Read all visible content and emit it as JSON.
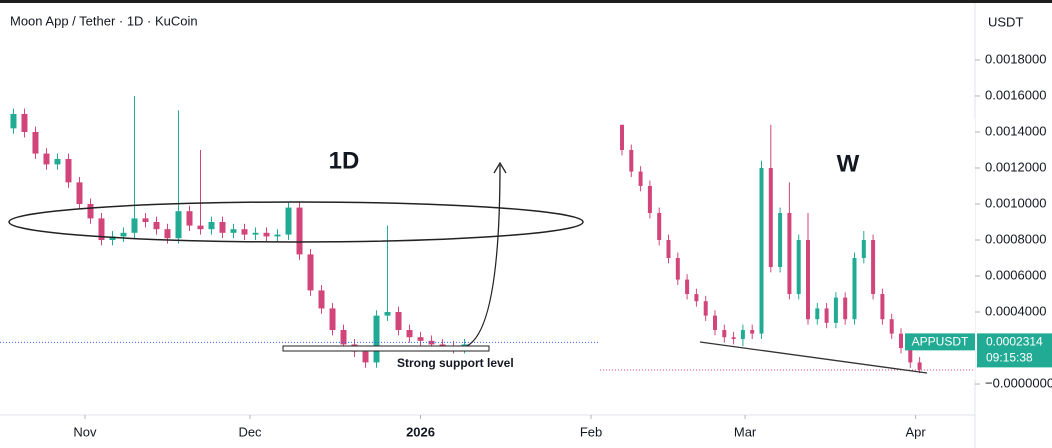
{
  "chart_data": [
    {
      "type": "candlestick",
      "title": "Moon App / Tether · 1D · KuCoin",
      "currency": "USDT",
      "annotation_main": "1D",
      "support_note": "Strong support level",
      "up_color": "#22ab94",
      "down_color": "#d1457a",
      "x": [
        -13,
        -11,
        -9,
        -7,
        -5,
        -3,
        -1,
        1,
        3,
        5,
        7,
        9,
        11,
        13,
        15,
        17,
        19,
        21,
        23,
        25,
        27,
        29,
        31,
        33,
        35,
        37,
        39,
        41,
        43,
        45,
        47,
        49,
        51,
        53,
        55,
        57,
        59,
        61,
        63,
        65,
        67,
        69
      ],
      "open": [
        0.00142,
        0.0015,
        0.0014,
        0.00128,
        0.00122,
        0.00125,
        0.00112,
        0.001,
        0.00092,
        0.0008,
        0.00082,
        0.00084,
        0.00092,
        0.0009,
        0.00086,
        0.00081,
        0.00096,
        0.00088,
        0.00086,
        0.0009,
        0.00084,
        0.00086,
        0.00083,
        0.00084,
        0.00082,
        0.00083,
        0.00098,
        0.00072,
        0.00052,
        0.00042,
        0.0003,
        0.00022,
        0.00018,
        0.00012,
        0.00038,
        0.0004,
        0.0003,
        0.00026,
        0.00024,
        0.00022,
        0.00021,
        0.0002
      ],
      "high": [
        0.00153,
        0.00153,
        0.00143,
        0.00131,
        0.00128,
        0.00128,
        0.00115,
        0.00103,
        0.00095,
        0.00085,
        0.00087,
        0.0016,
        0.00095,
        0.00093,
        0.00089,
        0.00152,
        0.00099,
        0.0013,
        0.00093,
        0.00093,
        0.00089,
        0.00089,
        0.00087,
        0.00087,
        0.00086,
        0.00101,
        0.00101,
        0.00075,
        0.00055,
        0.00045,
        0.00033,
        0.00025,
        0.00021,
        0.00041,
        0.00088,
        0.00043,
        0.00033,
        0.00029,
        0.00027,
        0.00025,
        0.00024,
        0.00025
      ],
      "low": [
        0.00139,
        0.00137,
        0.00125,
        0.00119,
        0.00119,
        0.00109,
        0.00097,
        0.00089,
        0.00077,
        0.00077,
        0.00079,
        0.00081,
        0.00087,
        0.00083,
        0.00078,
        0.00078,
        0.00085,
        0.00083,
        0.00083,
        0.00081,
        0.00081,
        0.0008,
        0.0008,
        0.00079,
        0.00079,
        0.0008,
        0.00069,
        0.00049,
        0.00039,
        0.00027,
        0.00019,
        0.00015,
        9e-05,
        9e-05,
        0.00035,
        0.00027,
        0.00023,
        0.00021,
        0.00019,
        0.00018,
        0.00017,
        0.00017
      ],
      "close": [
        0.0015,
        0.0014,
        0.00128,
        0.00122,
        0.00125,
        0.00112,
        0.001,
        0.00092,
        0.0008,
        0.00082,
        0.00084,
        0.00092,
        0.0009,
        0.00086,
        0.00081,
        0.00096,
        0.00088,
        0.00086,
        0.0009,
        0.00084,
        0.00086,
        0.00083,
        0.00084,
        0.00082,
        0.00083,
        0.00098,
        0.00072,
        0.00052,
        0.00042,
        0.0003,
        0.00022,
        0.00018,
        0.00012,
        0.00038,
        0.0004,
        0.0003,
        0.00026,
        0.00024,
        0.00022,
        0.00021,
        0.0002,
        0.00022
      ],
      "xlim": [
        -15.45,
        161.8
      ],
      "xticks": [
        {
          "value": 0,
          "label": "Nov"
        },
        {
          "value": 30,
          "label": "Dec"
        },
        {
          "value": 61,
          "label": "2026"
        },
        {
          "value": 92,
          "label": "Feb"
        },
        {
          "value": 120,
          "label": "Mar"
        },
        {
          "value": 151,
          "label": "Apr"
        }
      ],
      "ylim": [
        -0.000172,
        0.002133
      ],
      "yticks": [
        {
          "value": 0.0018,
          "label": "0.0018000"
        },
        {
          "value": 0.0016,
          "label": "0.0016000"
        },
        {
          "value": 0.0014,
          "label": "0.0014000"
        },
        {
          "value": 0.0012,
          "label": "0.0012000"
        },
        {
          "value": 0.001,
          "label": "0.0010000"
        },
        {
          "value": 0.0008,
          "label": "0.0008000"
        },
        {
          "value": 0.0006,
          "label": "0.0006000"
        },
        {
          "value": 0.0004,
          "label": "0.0004000"
        },
        {
          "value": 0,
          "label": "−0.0000000"
        }
      ],
      "last_price": {
        "symbol": "APPUSDT",
        "price": {
          "value": 0.0002314,
          "label": "0.0002314"
        },
        "countdown": "09:15:38"
      }
    },
    {
      "type": "candlestick",
      "annotation_main": "W",
      "up_color": "#22ab94",
      "down_color": "#d1457a",
      "open": [
        0.00144,
        0.0013,
        0.00118,
        0.0011,
        0.00095,
        0.0008,
        0.0007,
        0.00058,
        0.0005,
        0.00046,
        0.00038,
        0.0003,
        0.00026,
        0.00025,
        0.0003,
        0.00028,
        0.0012,
        0.00065,
        0.00095,
        0.0005,
        0.0008,
        0.00036,
        0.00042,
        0.00034,
        0.00048,
        0.00036,
        0.0007,
        0.0008,
        0.0005,
        0.00036,
        0.00028,
        0.0002,
        0.00012
      ],
      "high": [
        0.00144,
        0.00133,
        0.00121,
        0.00113,
        0.00098,
        0.00083,
        0.00073,
        0.00061,
        0.00053,
        0.00049,
        0.00041,
        0.00033,
        0.00029,
        0.00033,
        0.00033,
        0.00124,
        0.00144,
        0.00098,
        0.00112,
        0.00083,
        0.00095,
        0.00045,
        0.00045,
        0.00051,
        0.00051,
        0.00073,
        0.00085,
        0.00083,
        0.00053,
        0.00039,
        0.00031,
        0.00023,
        0.00015
      ],
      "low": [
        0.00127,
        0.00115,
        0.00107,
        0.00092,
        0.00077,
        0.00067,
        0.00055,
        0.00047,
        0.00043,
        0.00035,
        0.00027,
        0.00023,
        0.00022,
        0.00021,
        0.00025,
        0.00025,
        0.00062,
        0.00062,
        0.00047,
        0.00047,
        0.00033,
        0.00033,
        0.00031,
        0.00031,
        0.00033,
        0.00033,
        0.00067,
        0.00047,
        0.00033,
        0.00025,
        0.00017,
        9e-05,
        6e-05
      ],
      "close": [
        0.0013,
        0.00118,
        0.0011,
        0.00095,
        0.0008,
        0.0007,
        0.00058,
        0.0005,
        0.00046,
        0.00038,
        0.0003,
        0.00026,
        0.00025,
        0.0003,
        0.00028,
        0.0012,
        0.00065,
        0.00095,
        0.0005,
        0.0008,
        0.00036,
        0.00042,
        0.00034,
        0.00048,
        0.00036,
        0.0007,
        0.0008,
        0.0005,
        0.00036,
        0.00028,
        0.0002,
        0.00012,
        8e-05
      ],
      "ylim": [
        -0.000172,
        0.002133
      ]
    }
  ]
}
